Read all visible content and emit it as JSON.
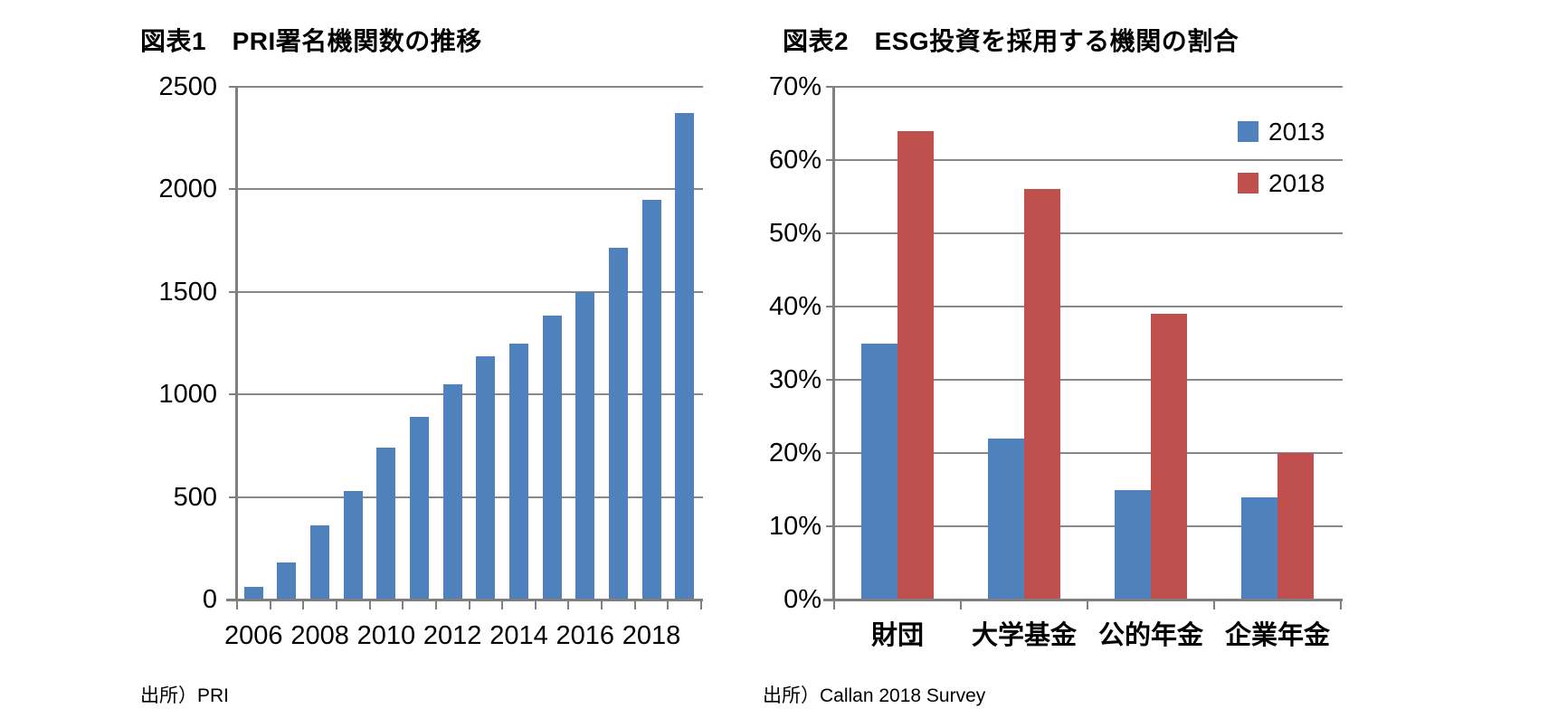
{
  "chart_data": [
    {
      "type": "bar",
      "title": "図表1　PRI署名機関数の推移",
      "source": "出所）PRI",
      "categories": [
        "2006",
        "2007",
        "2008",
        "2009",
        "2010",
        "2011",
        "2012",
        "2013",
        "2014",
        "2015",
        "2016",
        "2017",
        "2018",
        "2019"
      ],
      "values": [
        60,
        180,
        360,
        530,
        740,
        890,
        1050,
        1185,
        1250,
        1385,
        1500,
        1715,
        1950,
        2370
      ],
      "bar_color": "#4F81BD",
      "ylim": [
        0,
        2500
      ],
      "ytick_step": 500,
      "ytick_labels": [
        "0",
        "500",
        "1000",
        "1500",
        "2000",
        "2500"
      ],
      "xtick_labels": [
        "2006",
        "2008",
        "2010",
        "2012",
        "2014",
        "2016",
        "2018"
      ],
      "grid": true,
      "legend": null
    },
    {
      "type": "grouped-bar",
      "title": "図表2　ESG投資を採用する機関の割合",
      "source": "出所）Callan 2018 Survey",
      "categories": [
        "財団",
        "大学基金",
        "公的年金",
        "企業年金"
      ],
      "series": [
        {
          "name": "2013",
          "color": "#4F81BD",
          "values": [
            35,
            22,
            15,
            14
          ]
        },
        {
          "name": "2018",
          "color": "#C0504D",
          "values": [
            64,
            56,
            39,
            20
          ]
        }
      ],
      "ylim": [
        0,
        70
      ],
      "ytick_step": 10,
      "ytick_labels": [
        "0%",
        "10%",
        "20%",
        "30%",
        "40%",
        "50%",
        "60%",
        "70%"
      ],
      "grid": true,
      "legend": {
        "labels": [
          "2013",
          "2018"
        ],
        "position": "top-right"
      }
    }
  ],
  "colors": {
    "bar_blue": "#4F81BD",
    "bar_red": "#C0504D",
    "gridline": "#878787",
    "axis": "#7f7f7f",
    "text": "#000000",
    "background": "#ffffff"
  }
}
